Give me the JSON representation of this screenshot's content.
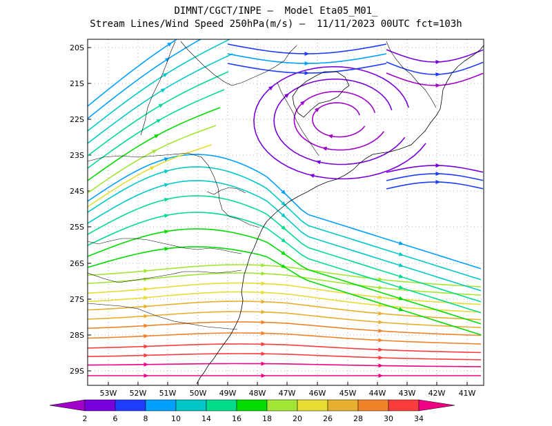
{
  "header": {
    "line1": "DIMNT/CGCT/INPE –  Model Eta05_M01_",
    "line2": "Stream Lines/Wind Speed 250hPa(m/s) –  11/11/2023 00UTC fct=103h"
  },
  "axes": {
    "lat_labels": [
      "20S",
      "21S",
      "22S",
      "23S",
      "24S",
      "25S",
      "26S",
      "27S",
      "28S",
      "29S"
    ],
    "lon_labels": [
      "53W",
      "52W",
      "51W",
      "50W",
      "49W",
      "48W",
      "47W",
      "46W",
      "45W",
      "44W",
      "43W",
      "42W",
      "41W"
    ]
  },
  "colorbar": {
    "labels": [
      "2",
      "6",
      "8",
      "10",
      "14",
      "16",
      "18",
      "20",
      "26",
      "28",
      "30",
      "34"
    ],
    "colors": [
      "#a000c8",
      "#7800dc",
      "#1e3cff",
      "#00a0ff",
      "#00c8c8",
      "#00dc8c",
      "#00dc00",
      "#a0e632",
      "#e6dc32",
      "#e6af2d",
      "#f08228",
      "#fa3c3c",
      "#f00082"
    ]
  }
}
